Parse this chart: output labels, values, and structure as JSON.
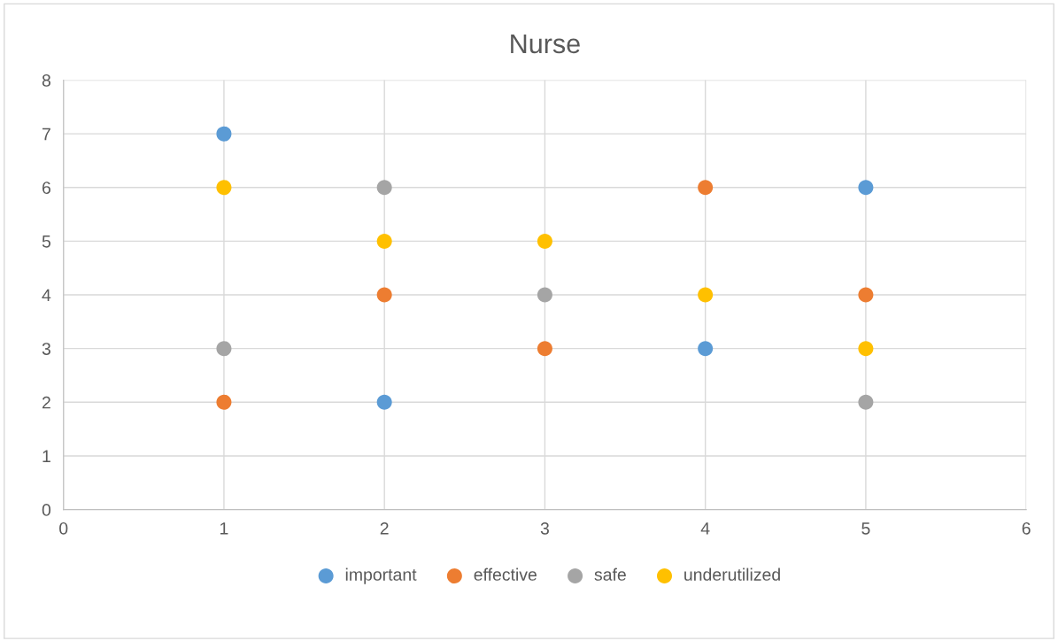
{
  "chart_data": {
    "type": "scatter",
    "title": "Nurse",
    "x": [
      1,
      2,
      3,
      4,
      5
    ],
    "series": [
      {
        "name": "important",
        "color": "#5b9bd5",
        "values": [
          7,
          2,
          null,
          3,
          6
        ]
      },
      {
        "name": "effective",
        "color": "#ed7d31",
        "values": [
          2,
          4,
          3,
          6,
          4
        ]
      },
      {
        "name": "safe",
        "color": "#a5a5a5",
        "values": [
          3,
          6,
          4,
          null,
          2
        ]
      },
      {
        "name": "underutilized",
        "color": "#ffc000",
        "values": [
          6,
          5,
          5,
          4,
          3
        ]
      }
    ],
    "xlim": [
      0,
      6
    ],
    "xticks": [
      0,
      1,
      2,
      3,
      4,
      5,
      6
    ],
    "ylim": [
      0,
      8
    ],
    "yticks": [
      0,
      1,
      2,
      3,
      4,
      5,
      6,
      7,
      8
    ],
    "grid": true,
    "legend": "bottom",
    "marker": "circle"
  }
}
